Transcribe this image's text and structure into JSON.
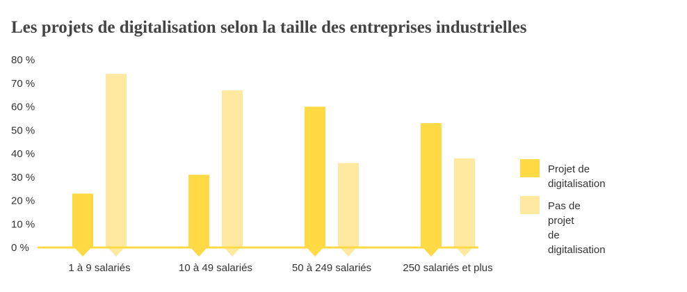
{
  "chart_data": {
    "type": "bar",
    "title": "Les projets de digitalisation selon la taille des entreprises industrielles",
    "categories": [
      "1 à 9 salariés",
      "10 à 49 salariés",
      "50 à 249 salariés",
      "250 salariés et plus"
    ],
    "series": [
      {
        "name": "Projet de digitalisation",
        "values": [
          23,
          31,
          60,
          53
        ],
        "color": "#FFDA44"
      },
      {
        "name": "Pas de projet\nde digitalisation",
        "values": [
          74,
          67,
          36,
          38
        ],
        "color": "#FFE9A1"
      }
    ],
    "yticks": [
      "0 %",
      "10 %",
      "20 %",
      "30 %",
      "40 %",
      "50 %",
      "60 %",
      "70 %",
      "80 %"
    ],
    "ylim": [
      0,
      80
    ],
    "grid": false,
    "legend": "right",
    "axis_color": "#FFDA44"
  }
}
